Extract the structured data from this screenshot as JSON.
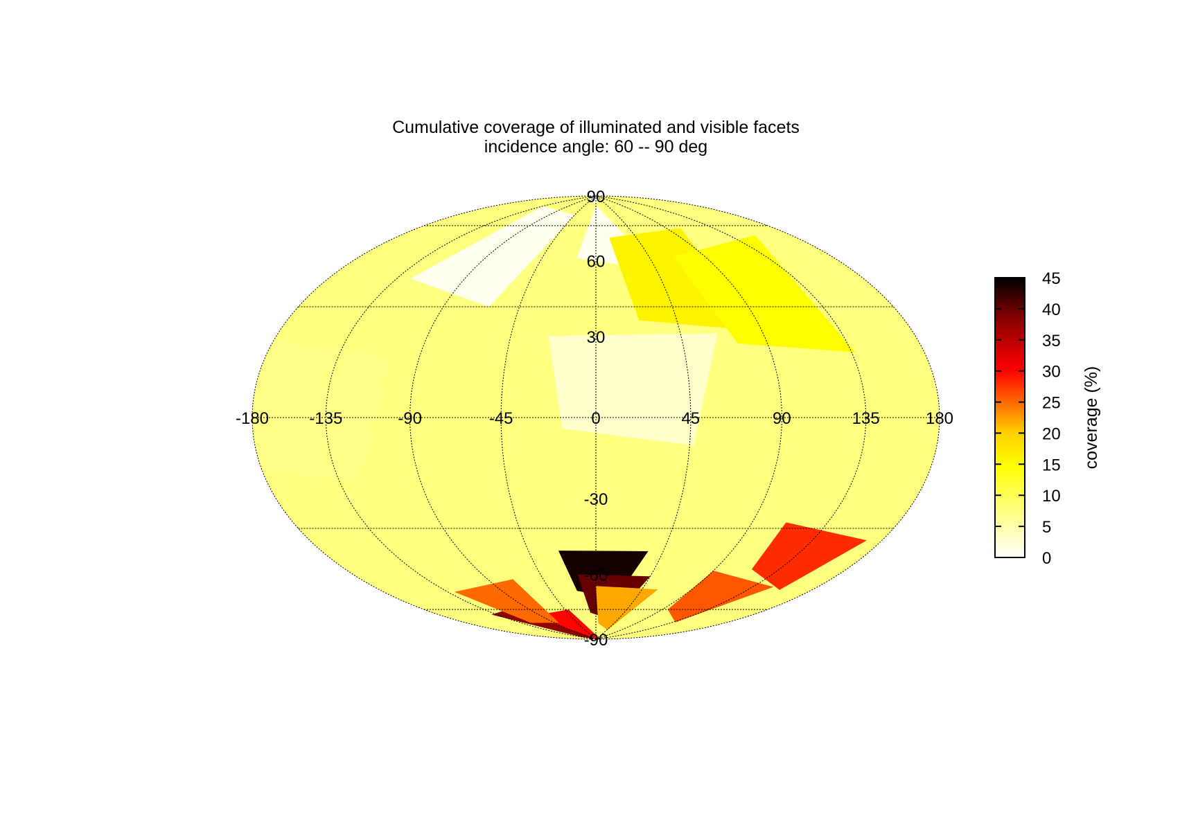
{
  "chart_data": {
    "type": "heatmap",
    "projection": "aitoff-hammer",
    "title": "Cumulative coverage of illuminated and visible facets",
    "subtitle": "incidence angle: 60 -- 90 deg",
    "x_ticks": [
      -180,
      -135,
      -90,
      -45,
      0,
      45,
      90,
      135,
      180
    ],
    "y_ticks": [
      90,
      60,
      30,
      -30,
      -60,
      -90
    ],
    "lon_range": [
      -180,
      180
    ],
    "lat_range": [
      -90,
      90
    ],
    "grid": true,
    "colorbar": {
      "label": "coverage (%)",
      "range": [
        0,
        45
      ],
      "ticks": [
        0,
        5,
        10,
        15,
        20,
        25,
        30,
        35,
        40,
        45
      ],
      "colormap": [
        "#ffffff",
        "#ffff66",
        "#ffff00",
        "#ffcc00",
        "#ff6600",
        "#ff0000",
        "#8b0000",
        "#000000"
      ]
    },
    "regions": [
      {
        "lon": -150,
        "lat": 0,
        "value": 7
      },
      {
        "lon": -90,
        "lat": 60,
        "value": 1
      },
      {
        "lon": 20,
        "lat": 75,
        "value": 1
      },
      {
        "lon": 20,
        "lat": 10,
        "value": 3
      },
      {
        "lon": 60,
        "lat": 50,
        "value": 16
      },
      {
        "lon": 110,
        "lat": 40,
        "value": 15
      },
      {
        "lon": -110,
        "lat": -80,
        "value": 38
      },
      {
        "lon": -70,
        "lat": -85,
        "value": 30
      },
      {
        "lon": -100,
        "lat": -70,
        "value": 25
      },
      {
        "lon": 5,
        "lat": -60,
        "value": 44
      },
      {
        "lon": 15,
        "lat": -70,
        "value": 40
      },
      {
        "lon": 30,
        "lat": -75,
        "value": 22
      },
      {
        "lon": 140,
        "lat": -45,
        "value": 28
      },
      {
        "lon": 120,
        "lat": -65,
        "value": 26
      }
    ]
  }
}
